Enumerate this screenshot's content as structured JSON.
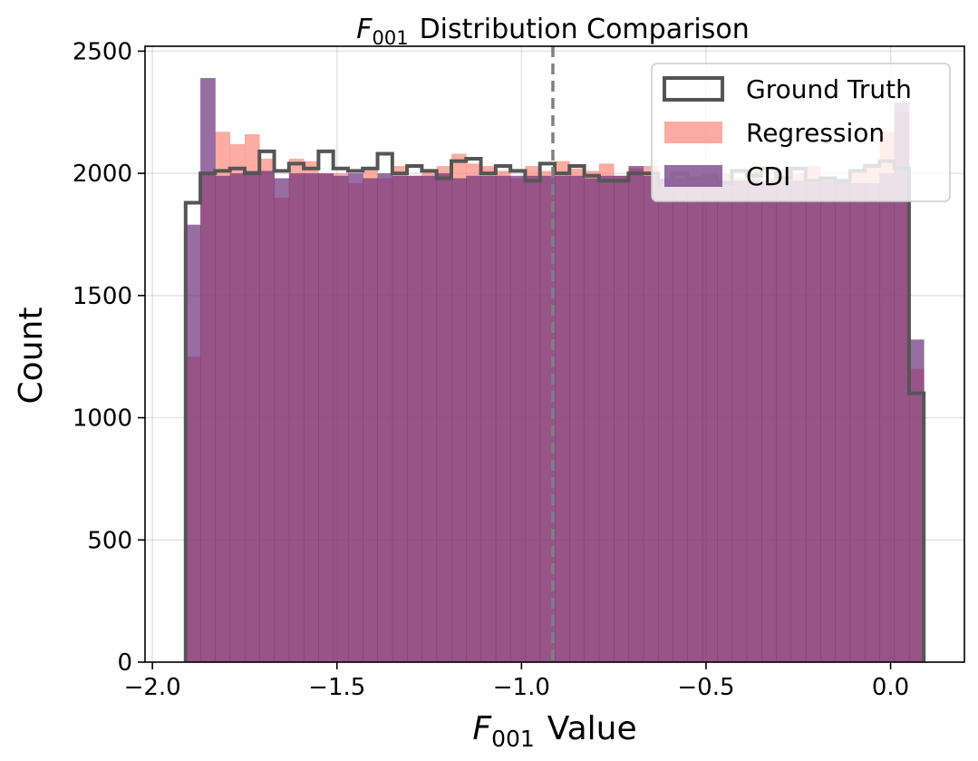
{
  "chart_data": {
    "type": "histogram",
    "title": {
      "symbol": "F",
      "subscript": "001",
      "text": "Distribution Comparison"
    },
    "xlabel": {
      "symbol": "F",
      "subscript": "001",
      "text": "Value"
    },
    "ylabel": "Count",
    "xlim": [
      -2.02,
      0.2
    ],
    "ylim": [
      0,
      2520
    ],
    "xticks": [
      -2.0,
      -1.5,
      -1.0,
      -0.5,
      0.0
    ],
    "xtick_labels": [
      "−2.0",
      "−1.5",
      "−1.0",
      "−0.5",
      "0.0"
    ],
    "yticks": [
      0,
      500,
      1000,
      1500,
      2000,
      2500
    ],
    "ytick_labels": [
      "0",
      "500",
      "1000",
      "1500",
      "2000",
      "2500"
    ],
    "grid": true,
    "vline": {
      "x": -0.915,
      "style": "dashed",
      "color": "#808080"
    },
    "bin_edges": [
      -1.91,
      -1.87,
      -1.83,
      -1.79,
      -1.75,
      -1.71,
      -1.67,
      -1.63,
      -1.59,
      -1.55,
      -1.51,
      -1.47,
      -1.43,
      -1.39,
      -1.35,
      -1.31,
      -1.27,
      -1.23,
      -1.19,
      -1.15,
      -1.11,
      -1.07,
      -1.03,
      -0.99,
      -0.95,
      -0.91,
      -0.87,
      -0.83,
      -0.79,
      -0.75,
      -0.71,
      -0.67,
      -0.63,
      -0.59,
      -0.55,
      -0.51,
      -0.47,
      -0.43,
      -0.39,
      -0.35,
      -0.31,
      -0.27,
      -0.23,
      -0.19,
      -0.15,
      -0.11,
      -0.07,
      -0.03,
      0.01,
      0.05,
      0.09
    ],
    "series": [
      {
        "name": "Ground Truth",
        "kind": "step",
        "color": "#555555",
        "values": [
          1880,
          2000,
          2010,
          2020,
          2000,
          2090,
          2010,
          2040,
          2020,
          2090,
          2020,
          2010,
          2020,
          2080,
          2000,
          2030,
          2010,
          1980,
          2050,
          2060,
          2000,
          2030,
          2010,
          1970,
          2040,
          2000,
          2030,
          1990,
          1970,
          1970,
          2000,
          2000,
          1970,
          2000,
          1980,
          1990,
          1960,
          2010,
          1990,
          2020,
          1980,
          2020,
          1970,
          1980,
          1970,
          2010,
          2030,
          2050,
          2020,
          1100
        ]
      },
      {
        "name": "Regression",
        "kind": "bar",
        "color": "#fa8072",
        "opacity": 0.65,
        "values": [
          1250,
          2000,
          2170,
          2120,
          2160,
          2060,
          1900,
          2060,
          2050,
          2000,
          2000,
          1960,
          2020,
          1980,
          2030,
          1990,
          2010,
          2030,
          2080,
          2040,
          2030,
          2010,
          1980,
          2030,
          2010,
          2050,
          2020,
          2010,
          2040,
          1990,
          2020,
          2030,
          1960,
          2000,
          1980,
          2010,
          2000,
          1980,
          2020,
          1960,
          2020,
          2000,
          2030,
          1980,
          1960,
          2010,
          2040,
          2170,
          2250,
          1200
        ]
      },
      {
        "name": "CDI",
        "kind": "bar",
        "color": "#6b2f7a",
        "opacity": 0.7,
        "values": [
          1790,
          2390,
          1990,
          2000,
          2010,
          2010,
          1980,
          2000,
          2000,
          2000,
          1990,
          2000,
          1980,
          2000,
          1990,
          1990,
          1990,
          2000,
          1980,
          1990,
          1990,
          1990,
          1990,
          1990,
          1990,
          1990,
          1990,
          1980,
          1990,
          1990,
          2030,
          1990,
          1980,
          1980,
          1980,
          1980,
          1970,
          1970,
          1970,
          1970,
          1970,
          1970,
          1960,
          1970,
          1970,
          1960,
          1960,
          2000,
          2290,
          1320
        ]
      }
    ],
    "legend": {
      "position": "top-right",
      "entries": [
        "Ground Truth",
        "Regression",
        "CDI"
      ]
    }
  }
}
